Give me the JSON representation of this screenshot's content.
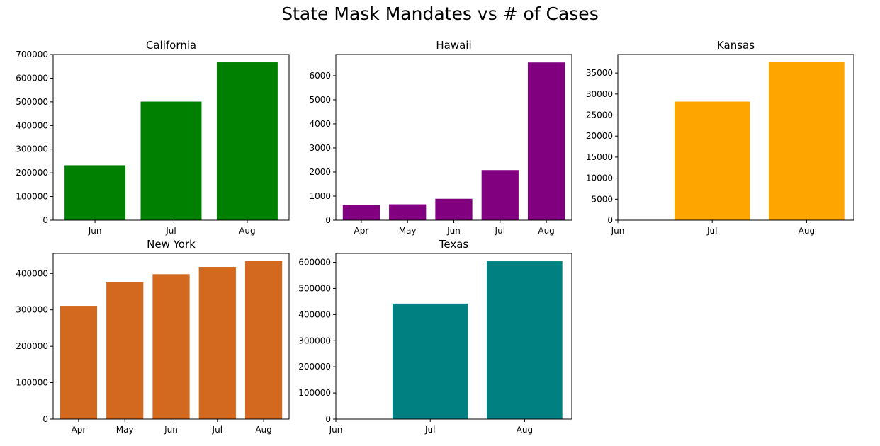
{
  "figure": {
    "title": "State Mask Mandates vs # of Cases"
  },
  "chart_data": [
    {
      "type": "bar",
      "title": "California",
      "categories": [
        "Jun",
        "Jul",
        "Aug"
      ],
      "values": [
        232000,
        501000,
        667000
      ],
      "ylim": [
        0,
        700000
      ],
      "yticks": [
        0,
        100000,
        200000,
        300000,
        400000,
        500000,
        600000,
        700000
      ],
      "color": "#008000"
    },
    {
      "type": "bar",
      "title": "Hawaii",
      "categories": [
        "Apr",
        "May",
        "Jun",
        "Jul",
        "Aug"
      ],
      "values": [
        620,
        660,
        890,
        2080,
        6550
      ],
      "ylim": [
        0,
        6880
      ],
      "yticks": [
        0,
        1000,
        2000,
        3000,
        4000,
        5000,
        6000
      ],
      "color": "#800080"
    },
    {
      "type": "bar",
      "title": "Kansas",
      "categories": [
        "Jun",
        "Jul",
        "Aug"
      ],
      "values": [
        0,
        28200,
        37600
      ],
      "ylim": [
        0,
        39400
      ],
      "yticks": [
        0,
        5000,
        10000,
        15000,
        20000,
        25000,
        30000,
        35000
      ],
      "color": "#FFA500"
    },
    {
      "type": "bar",
      "title": "New York",
      "categories": [
        "Apr",
        "May",
        "Jun",
        "Jul",
        "Aug"
      ],
      "values": [
        311000,
        376000,
        398000,
        418000,
        434000
      ],
      "ylim": [
        0,
        455000
      ],
      "yticks": [
        0,
        100000,
        200000,
        300000,
        400000
      ],
      "color": "#D2691E"
    },
    {
      "type": "bar",
      "title": "Texas",
      "categories": [
        "Jun",
        "Jul",
        "Aug"
      ],
      "values": [
        0,
        442000,
        604000
      ],
      "ylim": [
        0,
        634000
      ],
      "yticks": [
        0,
        100000,
        200000,
        300000,
        400000,
        500000,
        600000
      ],
      "color": "#008080"
    }
  ]
}
